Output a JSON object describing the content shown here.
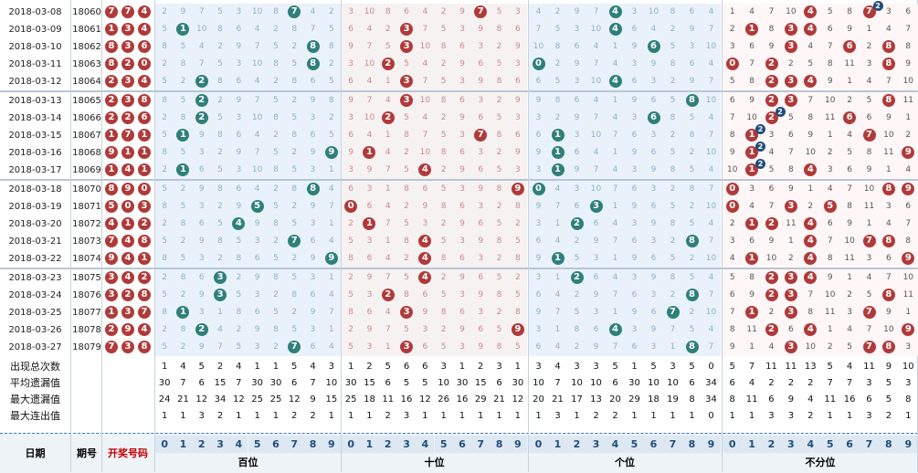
{
  "columns": {
    "date": "日期",
    "issue": "期号",
    "draw": "开奖号码",
    "groups": [
      "百位",
      "十位",
      "个位",
      "不分位"
    ],
    "digits": [
      "0",
      "1",
      "2",
      "3",
      "4",
      "5",
      "6",
      "7",
      "8",
      "9"
    ]
  },
  "rows": [
    {
      "date": "2018-03-08",
      "issue": "18060",
      "draw": [
        "7",
        "7",
        "4"
      ]
    },
    {
      "date": "2018-03-09",
      "issue": "18061",
      "draw": [
        "1",
        "3",
        "4"
      ]
    },
    {
      "date": "2018-03-10",
      "issue": "18062",
      "draw": [
        "8",
        "3",
        "6"
      ]
    },
    {
      "date": "2018-03-11",
      "issue": "18063",
      "draw": [
        "8",
        "2",
        "0"
      ]
    },
    {
      "date": "2018-03-12",
      "issue": "18064",
      "draw": [
        "2",
        "3",
        "4"
      ]
    },
    {
      "date": "2018-03-13",
      "issue": "18065",
      "draw": [
        "2",
        "3",
        "8"
      ]
    },
    {
      "date": "2018-03-14",
      "issue": "18066",
      "draw": [
        "2",
        "2",
        "6"
      ]
    },
    {
      "date": "2018-03-15",
      "issue": "18067",
      "draw": [
        "1",
        "7",
        "1"
      ]
    },
    {
      "date": "2018-03-16",
      "issue": "18068",
      "draw": [
        "9",
        "1",
        "1"
      ]
    },
    {
      "date": "2018-03-17",
      "issue": "18069",
      "draw": [
        "1",
        "4",
        "1"
      ]
    },
    {
      "date": "2018-03-18",
      "issue": "18070",
      "draw": [
        "8",
        "9",
        "0"
      ]
    },
    {
      "date": "2018-03-19",
      "issue": "18071",
      "draw": [
        "5",
        "0",
        "3"
      ]
    },
    {
      "date": "2018-03-20",
      "issue": "18072",
      "draw": [
        "4",
        "1",
        "2"
      ]
    },
    {
      "date": "2018-03-21",
      "issue": "18073",
      "draw": [
        "7",
        "4",
        "8"
      ]
    },
    {
      "date": "2018-03-22",
      "issue": "18074",
      "draw": [
        "9",
        "4",
        "1"
      ]
    },
    {
      "date": "2018-03-23",
      "issue": "18075",
      "draw": [
        "3",
        "4",
        "2"
      ]
    },
    {
      "date": "2018-03-24",
      "issue": "18076",
      "draw": [
        "3",
        "2",
        "8"
      ]
    },
    {
      "date": "2018-03-25",
      "issue": "18077",
      "draw": [
        "1",
        "3",
        "7"
      ]
    },
    {
      "date": "2018-03-26",
      "issue": "18078",
      "draw": [
        "2",
        "9",
        "4"
      ]
    },
    {
      "date": "2018-03-27",
      "issue": "18079",
      "draw": [
        "7",
        "3",
        "8"
      ]
    }
  ],
  "stats": [
    {
      "label": "出现总次数",
      "values": [
        "1",
        "4",
        "5",
        "2",
        "4",
        "1",
        "1",
        "5",
        "4",
        "3",
        "1",
        "2",
        "5",
        "6",
        "6",
        "3",
        "1",
        "2",
        "3",
        "1",
        "3",
        "4",
        "3",
        "3",
        "5",
        "1",
        "5",
        "3",
        "5",
        "0",
        "5",
        "7",
        "11",
        "11",
        "13",
        "5",
        "4",
        "11",
        "9",
        "10"
      ]
    },
    {
      "label": "平均遗漏值",
      "values": [
        "30",
        "7",
        "6",
        "15",
        "7",
        "30",
        "30",
        "6",
        "7",
        "10",
        "30",
        "15",
        "6",
        "5",
        "5",
        "10",
        "30",
        "15",
        "6",
        "30",
        "10",
        "7",
        "10",
        "10",
        "6",
        "30",
        "10",
        "10",
        "6",
        "34",
        "6",
        "4",
        "2",
        "2",
        "2",
        "7",
        "7",
        "3",
        "5",
        "3"
      ]
    },
    {
      "label": "最大遗漏值",
      "values": [
        "24",
        "21",
        "12",
        "34",
        "12",
        "25",
        "25",
        "12",
        "9",
        "15",
        "25",
        "18",
        "11",
        "16",
        "12",
        "26",
        "16",
        "29",
        "21",
        "12",
        "20",
        "21",
        "17",
        "13",
        "20",
        "29",
        "18",
        "19",
        "8",
        "34",
        "8",
        "11",
        "6",
        "9",
        "4",
        "11",
        "16",
        "6",
        "5",
        "8"
      ]
    },
    {
      "label": "最大连出值",
      "values": [
        "1",
        "1",
        "3",
        "2",
        "1",
        "1",
        "1",
        "2",
        "2",
        "1",
        "1",
        "1",
        "2",
        "3",
        "1",
        "1",
        "1",
        "1",
        "1",
        "1",
        "1",
        "3",
        "1",
        "2",
        "2",
        "1",
        "1",
        "1",
        "1",
        "0",
        "1",
        "1",
        "3",
        "3",
        "2",
        "1",
        "1",
        "3",
        "2",
        "1"
      ]
    }
  ],
  "colors": {
    "hundreds": "#2f7f7a",
    "tens": "#b03a3a",
    "units": "#2f7f7a",
    "unplaced": "#b03a3a",
    "draw_ball": "#b03a3a"
  }
}
